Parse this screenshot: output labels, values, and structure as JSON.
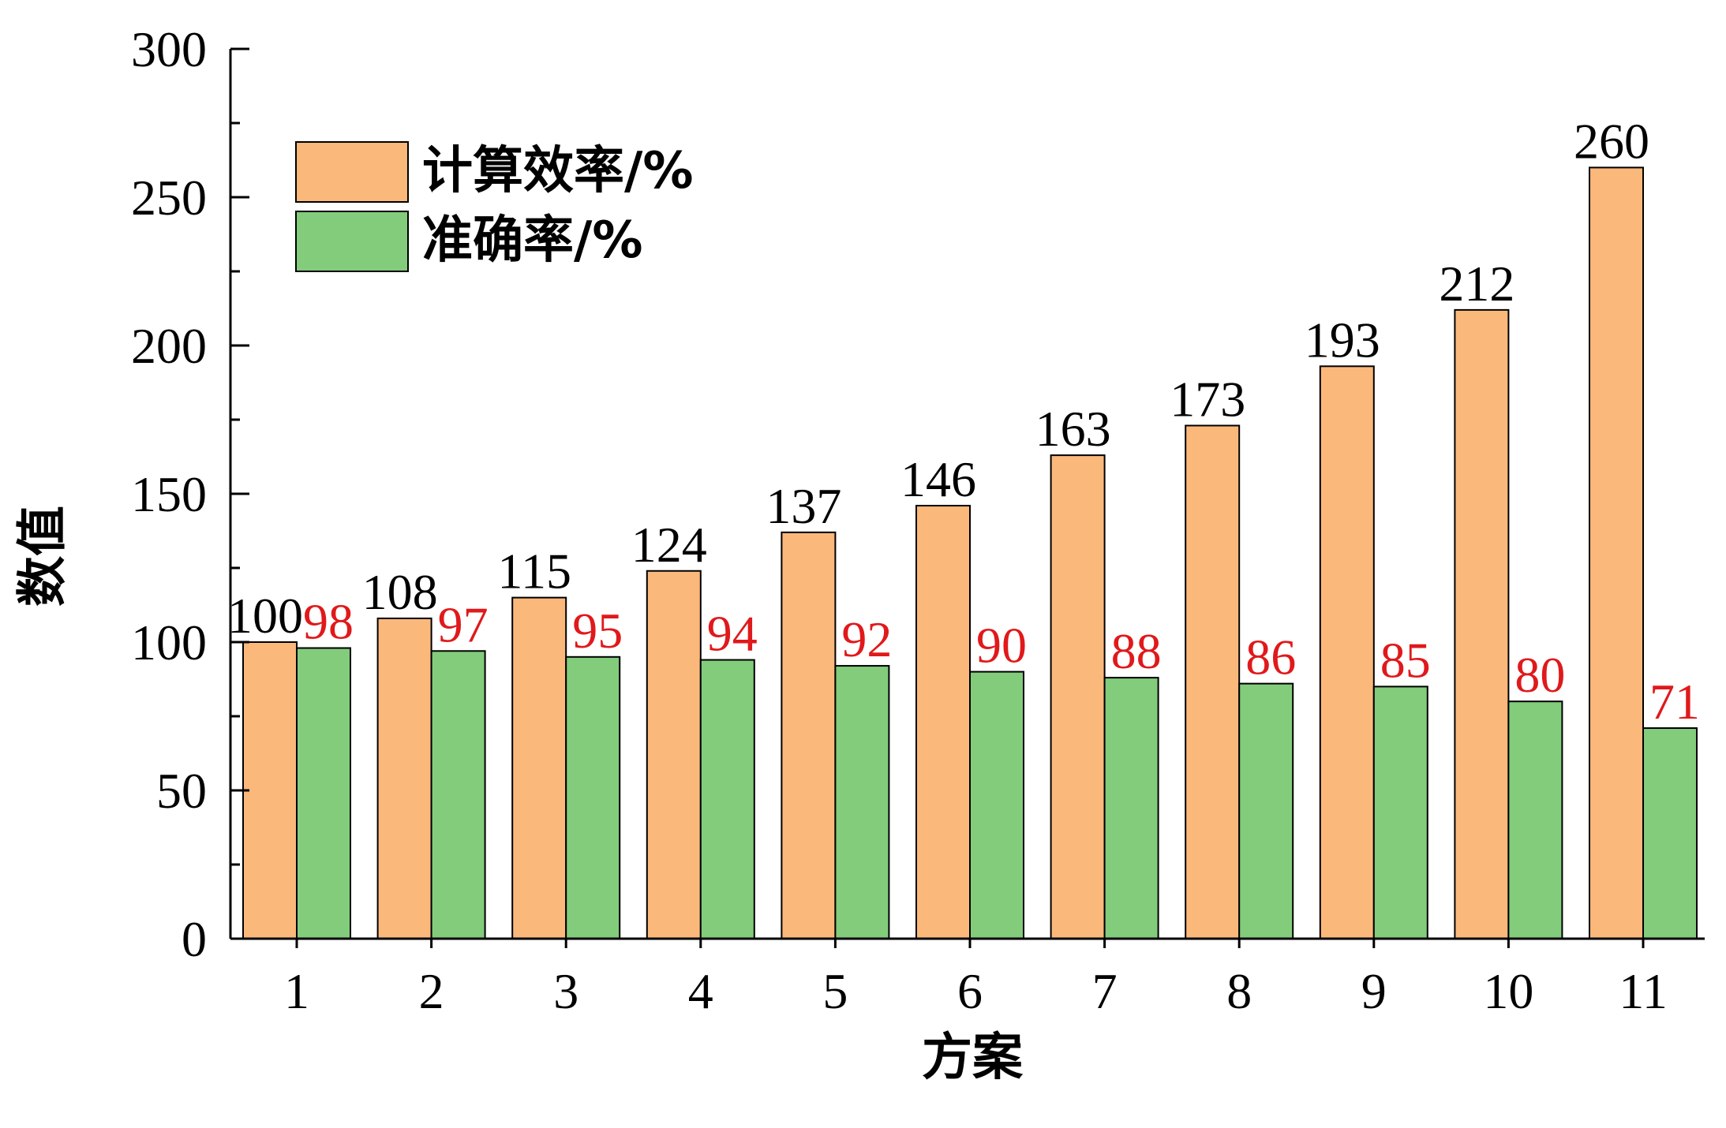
{
  "chart_data": {
    "type": "bar",
    "xlabel": "方案",
    "ylabel": "数值",
    "categories": [
      "1",
      "2",
      "3",
      "4",
      "5",
      "6",
      "7",
      "8",
      "9",
      "10",
      "11"
    ],
    "series": [
      {
        "name": "计算效率/%",
        "color": "#FBB87B",
        "label_color": "#000000",
        "values": [
          100,
          108,
          115,
          124,
          137,
          146,
          163,
          173,
          193,
          212,
          260
        ]
      },
      {
        "name": "准确率/%",
        "color": "#82CC7C",
        "label_color": "#E0191B",
        "values": [
          98,
          97,
          95,
          94,
          92,
          90,
          88,
          86,
          85,
          80,
          71
        ]
      }
    ],
    "ylim": [
      0,
      300
    ],
    "yticks": [
      0,
      50,
      100,
      150,
      200,
      250,
      300
    ],
    "grid": false,
    "legend_position": "top-left",
    "data_labels": true
  }
}
